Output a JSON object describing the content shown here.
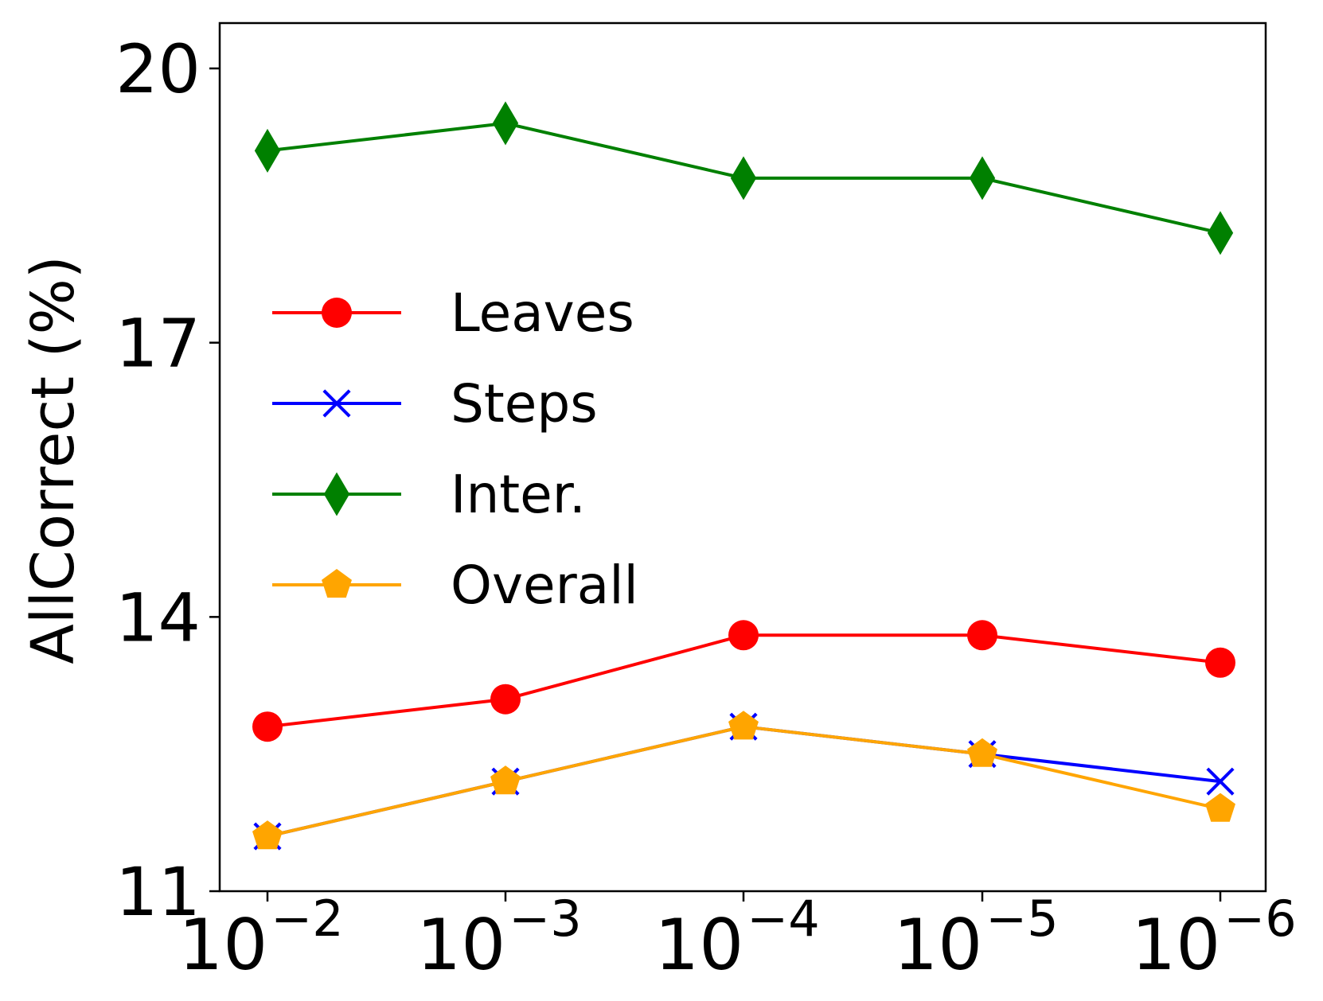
{
  "chart_data": {
    "type": "line",
    "title": "",
    "xlabel": "",
    "ylabel": "AllCorrect (%)",
    "x": [
      "10^-2",
      "10^-3",
      "10^-4",
      "10^-5",
      "10^-6"
    ],
    "x_tick_labels": [
      {
        "base": "10",
        "exp": "−2"
      },
      {
        "base": "10",
        "exp": "−3"
      },
      {
        "base": "10",
        "exp": "−4"
      },
      {
        "base": "10",
        "exp": "−5"
      },
      {
        "base": "10",
        "exp": "−6"
      }
    ],
    "y_ticks": [
      11,
      14,
      17,
      20
    ],
    "ylim": [
      11,
      20.5
    ],
    "grid": false,
    "legend_position": "center-left",
    "series": [
      {
        "name": "Leaves",
        "color": "#ff0000",
        "marker": "circle",
        "values": [
          12.8,
          13.1,
          13.8,
          13.8,
          13.5
        ]
      },
      {
        "name": "Steps",
        "color": "#0000ff",
        "marker": "x",
        "values": [
          11.6,
          12.2,
          12.8,
          12.5,
          12.2
        ]
      },
      {
        "name": "Inter.",
        "color": "#008000",
        "marker": "diamond",
        "values": [
          19.1,
          19.4,
          18.8,
          18.8,
          18.2
        ]
      },
      {
        "name": "Overall",
        "color": "#ffa500",
        "marker": "pentagon",
        "values": [
          11.6,
          12.2,
          12.8,
          12.5,
          11.9
        ]
      }
    ]
  }
}
